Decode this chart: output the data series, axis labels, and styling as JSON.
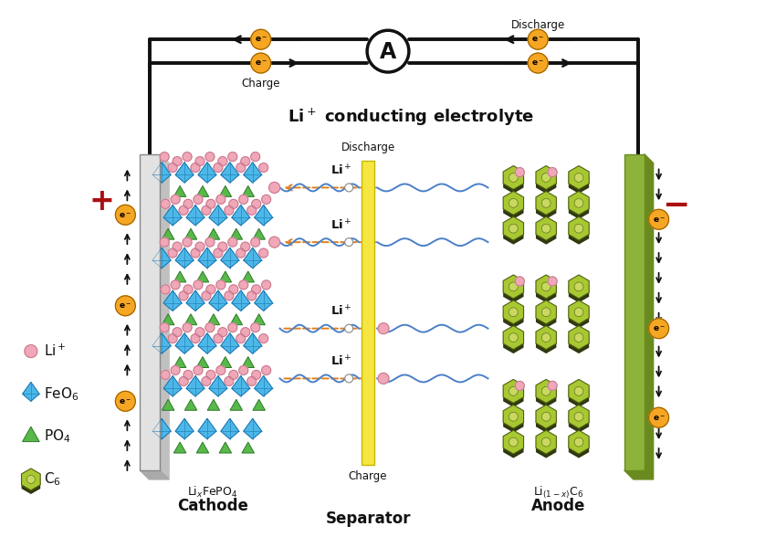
{
  "bg_color": "#ffffff",
  "electrolyte_title": "Li$^+$ conducting electrolyte",
  "cathode_label": "Cathode",
  "separator_label": "Separator",
  "anode_label": "Anode",
  "cathode_formula": "Li$_x$FePO$_4$",
  "anode_formula": "Li$_{(1-x)}$C$_6$",
  "discharge_label": "Discharge",
  "charge_label": "Charge",
  "li_plus": "Li$^+$",
  "electron_bg": "#F5A623",
  "arrow_color": "#111111",
  "discharge_arrow_color": "#D4840A",
  "separator_color": "#F5E642",
  "cathode_plate_color": "#D8D8D8",
  "cathode_plate_dark": "#B0B0B0",
  "anode_plate_color": "#8DB33A",
  "anode_plate_dark": "#6A8A20",
  "feo6_color": "#4DB8E8",
  "feo6_edge": "#1A78B4",
  "po4_color": "#58B84A",
  "po4_edge": "#2E7A28",
  "li_circle_color": "#F0A8B8",
  "li_circle_edge": "#C07088",
  "c6_color": "#A8C832",
  "c6_edge": "#506010",
  "c6_dark": "#303810",
  "wave_color": "#4A80C8",
  "orange_arrow": "#E08020",
  "plus_color": "#AA1010",
  "minus_color": "#AA1010"
}
